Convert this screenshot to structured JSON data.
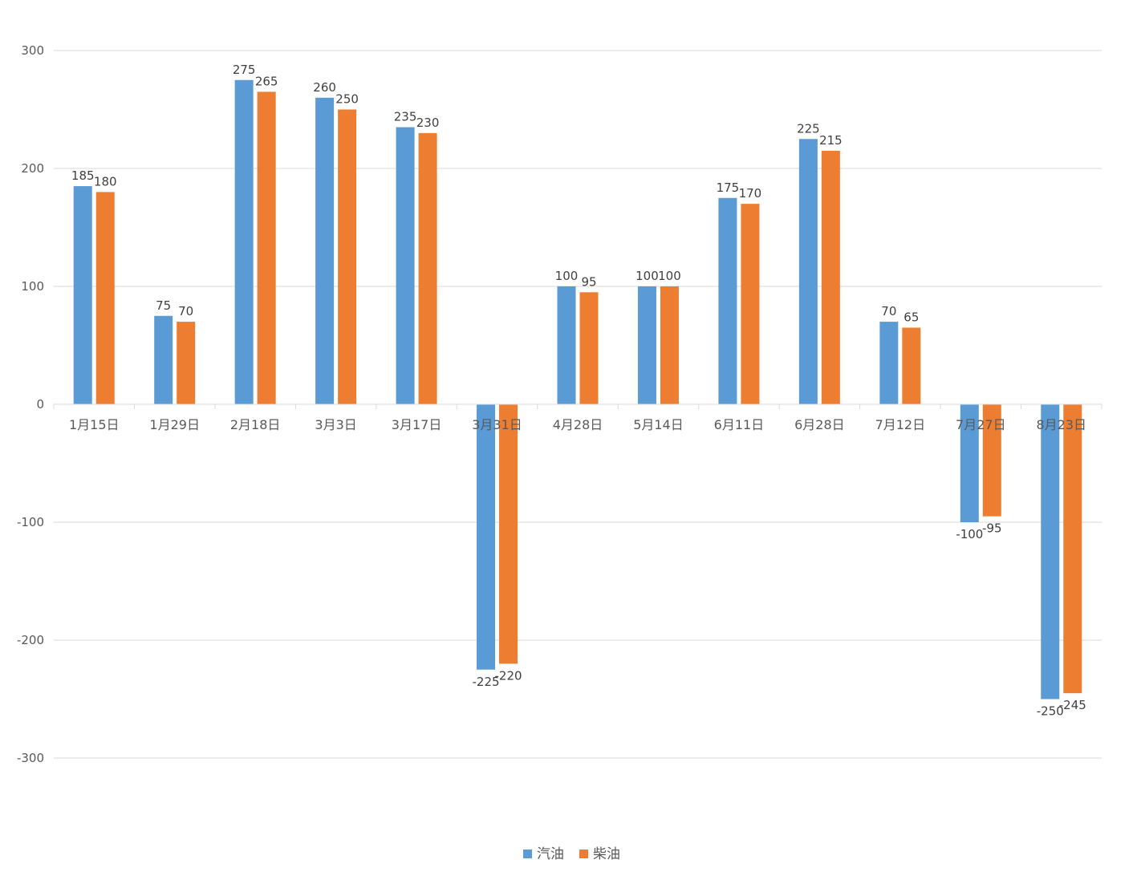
{
  "chart_data": {
    "type": "bar",
    "title": "",
    "xlabel": "",
    "ylabel": "",
    "categories": [
      "1月15日",
      "1月29日",
      "2月18日",
      "3月3日",
      "3月17日",
      "3月31日",
      "4月28日",
      "5月14日",
      "6月11日",
      "6月28日",
      "7月12日",
      "7月27日",
      "8月23日"
    ],
    "series": [
      {
        "name": "汽油",
        "color": "#5B9BD5",
        "values": [
          185,
          75,
          275,
          260,
          235,
          -225,
          100,
          100,
          175,
          225,
          70,
          -100,
          -250
        ]
      },
      {
        "name": "柴油",
        "color": "#ED7D31",
        "values": [
          180,
          70,
          265,
          250,
          230,
          -220,
          95,
          100,
          170,
          215,
          65,
          -95,
          -245
        ]
      }
    ],
    "ylim": [
      -300,
      300
    ],
    "yticks": [
      300,
      200,
      100,
      0,
      -100,
      -200,
      -300
    ],
    "grid": true,
    "data_labels": true,
    "legend_position": "bottom"
  }
}
